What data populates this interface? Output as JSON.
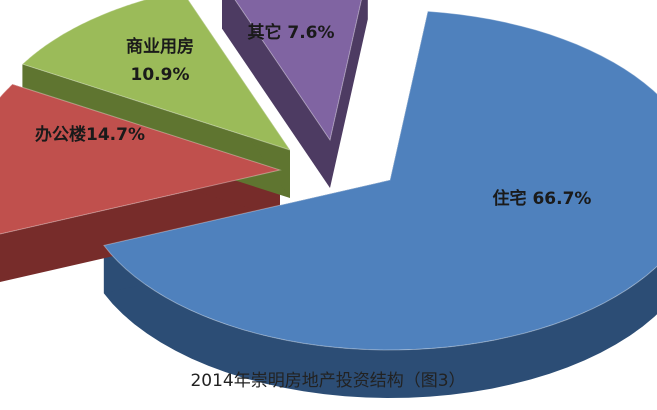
{
  "chart_data": {
    "type": "pie",
    "title": "2014年崇明房地产投资结构（图3）",
    "slices": [
      {
        "label": "住宅",
        "value": 66.7,
        "value_text": "66.7%",
        "color": "#4F81BD",
        "side_color": "#2C4D75"
      },
      {
        "label": "办公楼",
        "value": 14.7,
        "value_text": "14.7%",
        "color": "#C0504D",
        "side_color": "#772C2A"
      },
      {
        "label": "商业用房",
        "value": 10.9,
        "value_text": "10.9%",
        "color": "#9BBB59",
        "side_color": "#5F7530"
      },
      {
        "label": "其它",
        "value": 7.6,
        "value_text": "7.6%",
        "color": "#8064A2",
        "side_color": "#4D3B62"
      }
    ],
    "style": "3d-exploded",
    "legend": "none"
  }
}
